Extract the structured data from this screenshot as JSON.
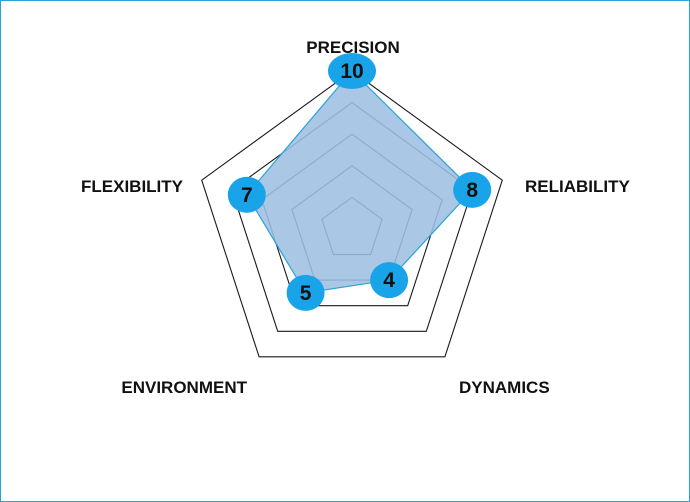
{
  "chart_data": {
    "type": "radar",
    "title": "",
    "axes": [
      "PRECISION",
      "RELIABILITY",
      "DYNAMICS",
      "ENVIRONMENT",
      "FLEXIBILITY"
    ],
    "values": [
      10,
      8,
      4,
      5,
      7
    ],
    "range": [
      0,
      10
    ],
    "grid_levels": 5,
    "colors": {
      "fill": "#9ebfe3",
      "line": "#29a3d6",
      "marker": "#19a3e8",
      "grid": "#1a1a1a",
      "frame_border": "#29a3d6"
    }
  }
}
